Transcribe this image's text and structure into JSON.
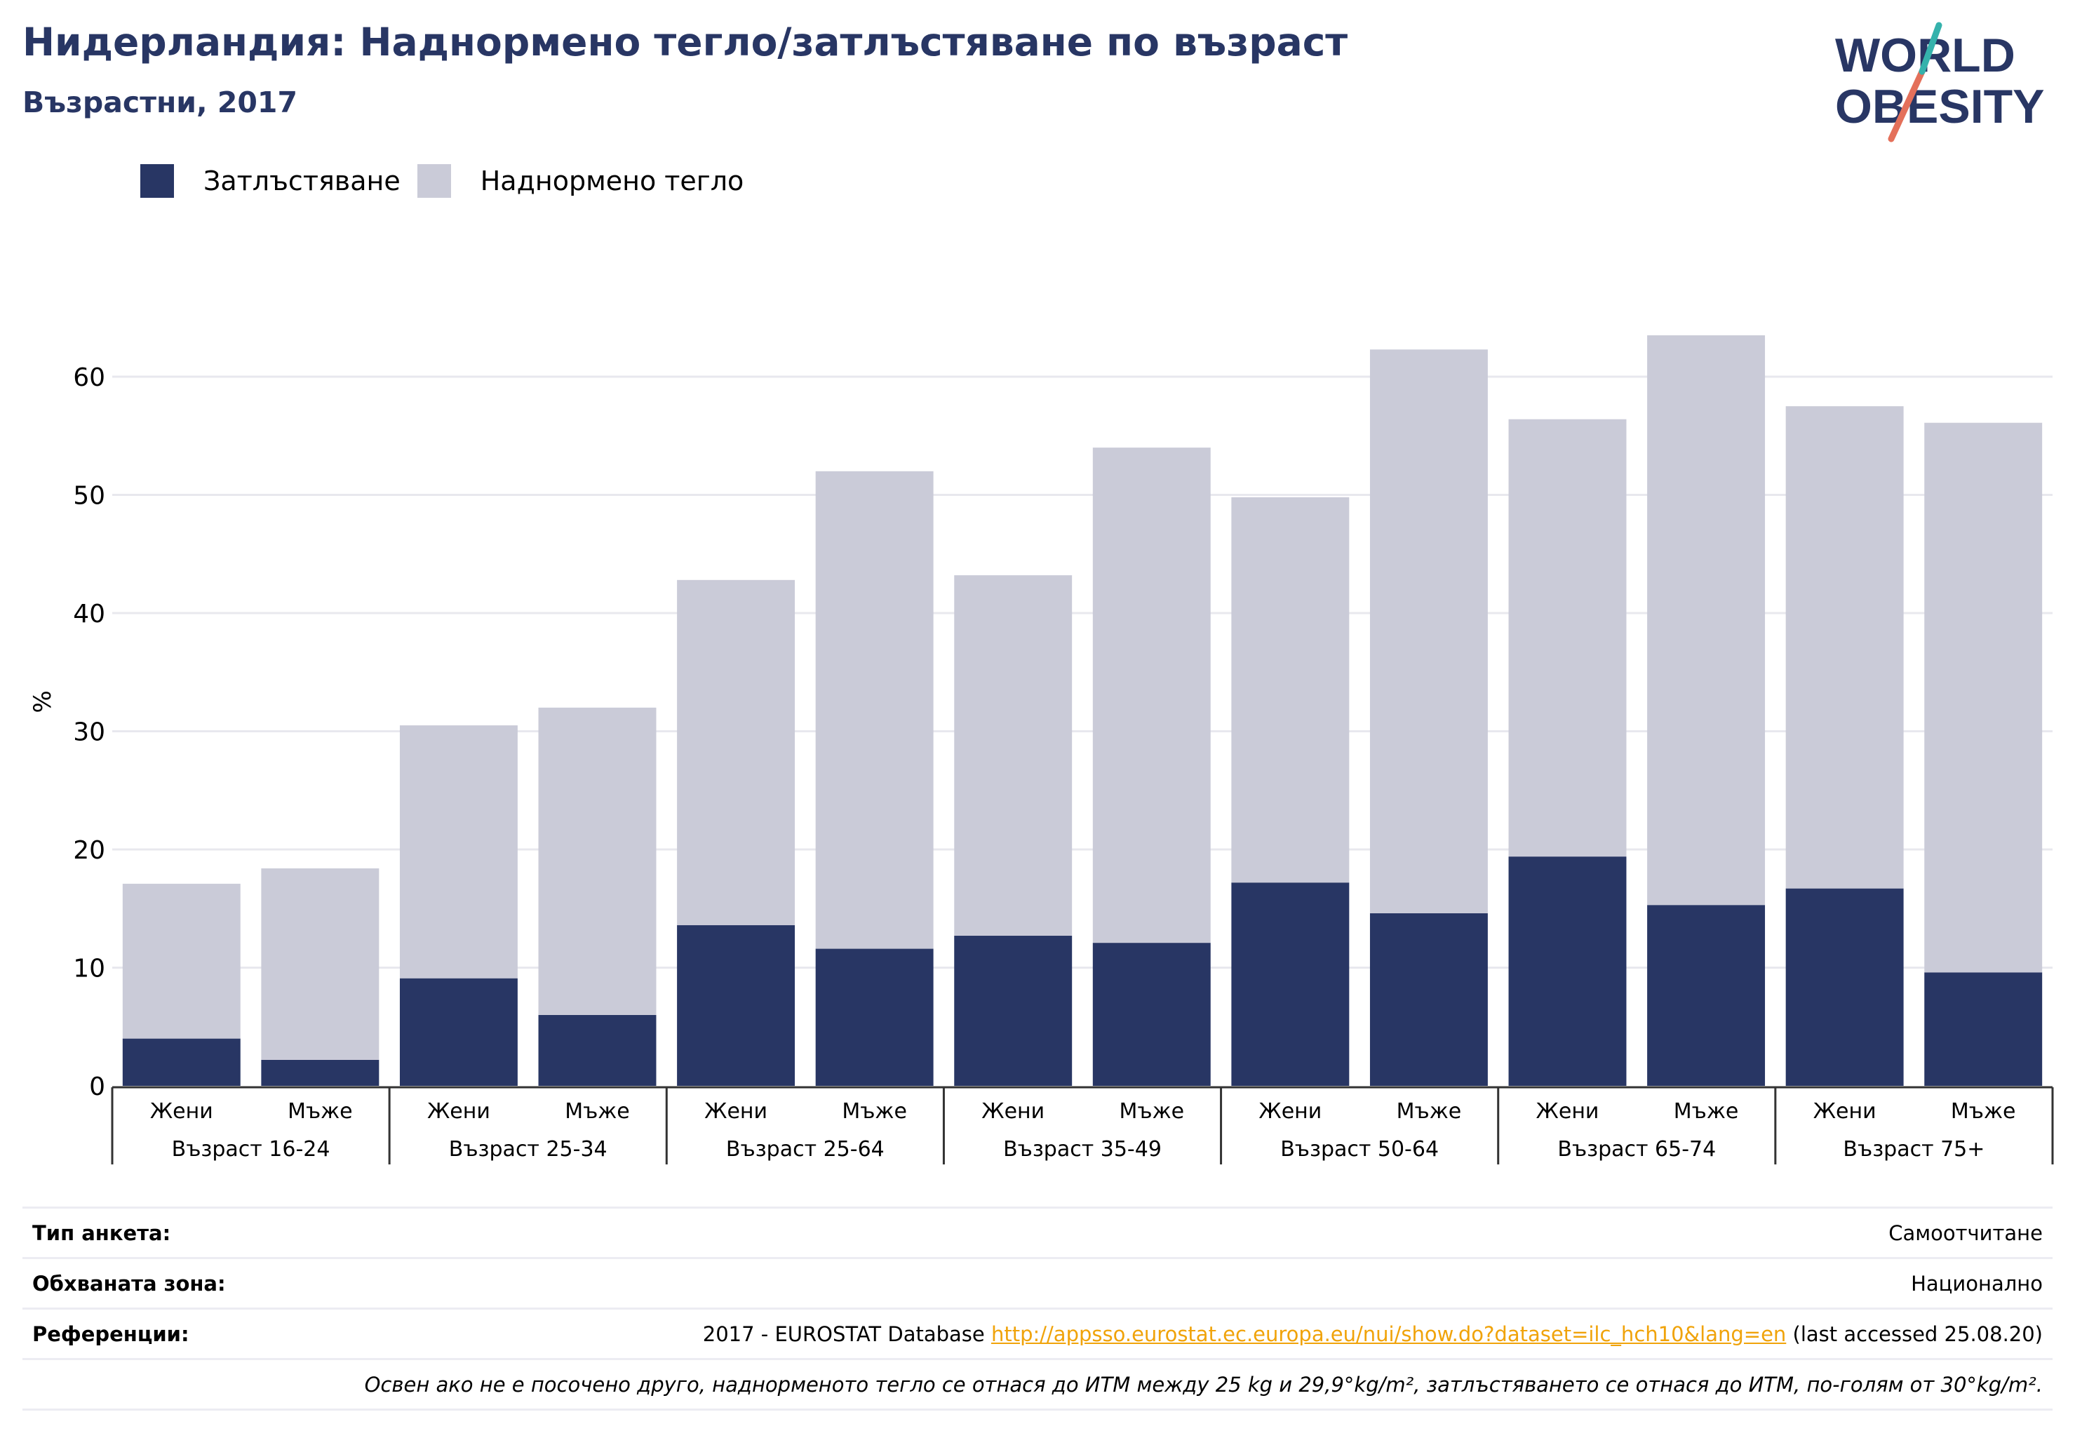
{
  "header": {
    "title": "Нидерландия: Наднормено тегло/затлъстяване по възраст",
    "subtitle": "Възрастни, 2017"
  },
  "logo": {
    "line1": "WORLD",
    "line2": "OBESITY"
  },
  "legend": [
    {
      "label": "Затлъстяване",
      "color": "#283664"
    },
    {
      "label": "Наднормено тегло",
      "color": "#cacbd8"
    }
  ],
  "chart_data": {
    "type": "bar",
    "stacked": true,
    "ylabel": "%",
    "ylim": [
      0,
      65
    ],
    "yticks": [
      0,
      10,
      20,
      30,
      40,
      50,
      60
    ],
    "grid": true,
    "legend_position": "top-left",
    "groups": [
      "Възраст 16-24",
      "Възраст 25-34",
      "Възраст 25-64",
      "Възраст 35-49",
      "Възраст 50-64",
      "Възраст 65-74",
      "Възраст 75+"
    ],
    "subcategories": [
      "Жени",
      "Мъже"
    ],
    "series": [
      {
        "name": "Затлъстяване",
        "color": "#283664",
        "values": [
          4.0,
          2.2,
          9.1,
          6.0,
          13.6,
          11.6,
          12.7,
          12.1,
          17.2,
          14.6,
          19.4,
          15.3,
          16.7,
          9.6
        ]
      },
      {
        "name": "Наднормено тегло",
        "color": "#cacbd8",
        "values": [
          13.1,
          16.2,
          21.4,
          26.0,
          29.2,
          40.4,
          30.5,
          41.9,
          32.6,
          47.7,
          37.0,
          48.2,
          40.8,
          46.5
        ]
      }
    ]
  },
  "footer": {
    "survey_label": "Тип анкета:",
    "survey_value": "Самоотчитане",
    "area_label": "Обхваната зона:",
    "area_value": "Национално",
    "ref_label": "Референции:",
    "ref_prefix": "2017 - EUROSTAT Database ",
    "ref_link": "http://appsso.eurostat.ec.europa.eu/nui/show.do?dataset=ilc_hch10&lang=en",
    "ref_suffix": " (last accessed 25.08.20)",
    "note": "Освен ако не е посочено друго, наднорменото тегло се отнася до ИТМ между 25 kg и 29,9°kg/m², затлъстяването се отнася до ИТМ, по-голям от 30°kg/m²."
  }
}
